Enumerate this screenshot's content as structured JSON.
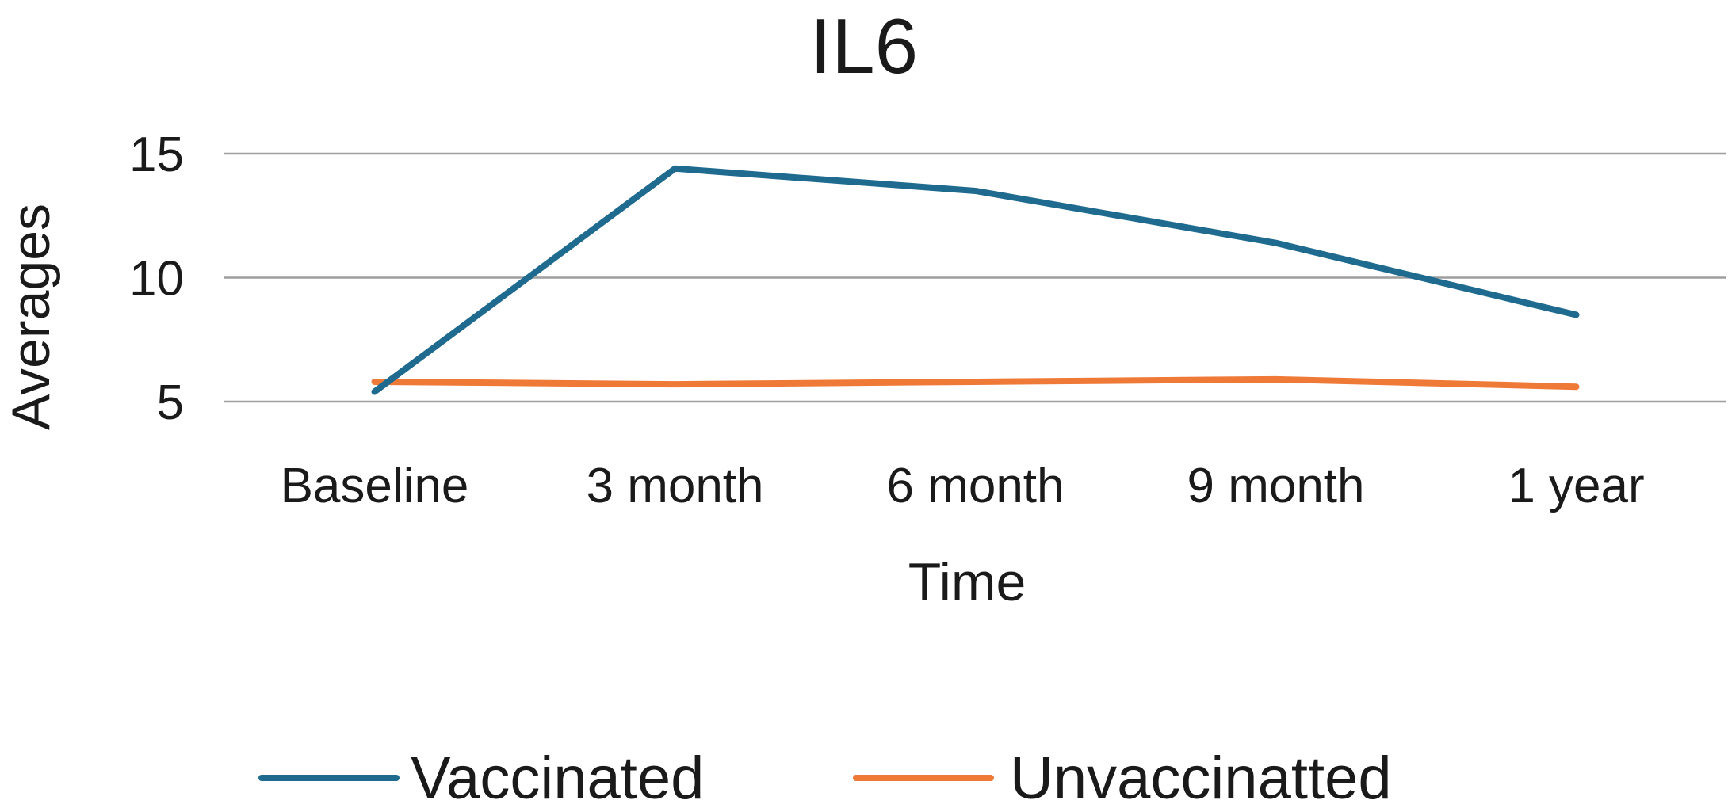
{
  "chart_data": {
    "type": "line",
    "title": "IL6",
    "xlabel": "Time",
    "ylabel": "Averages",
    "categories": [
      "Baseline",
      "3 month",
      "6 month",
      "9 month",
      "1 year"
    ],
    "ylim": [
      5,
      15
    ],
    "yticks": [
      5,
      10,
      15
    ],
    "grid": true,
    "legend_position": "bottom",
    "series": [
      {
        "name": "Vaccinated",
        "color": "#1f6b8f",
        "values": [
          5.4,
          14.4,
          13.5,
          11.4,
          8.5
        ]
      },
      {
        "name": "Unvaccinatted",
        "color": "#ef7a38",
        "values": [
          5.8,
          5.7,
          5.8,
          5.9,
          5.6
        ]
      }
    ]
  }
}
